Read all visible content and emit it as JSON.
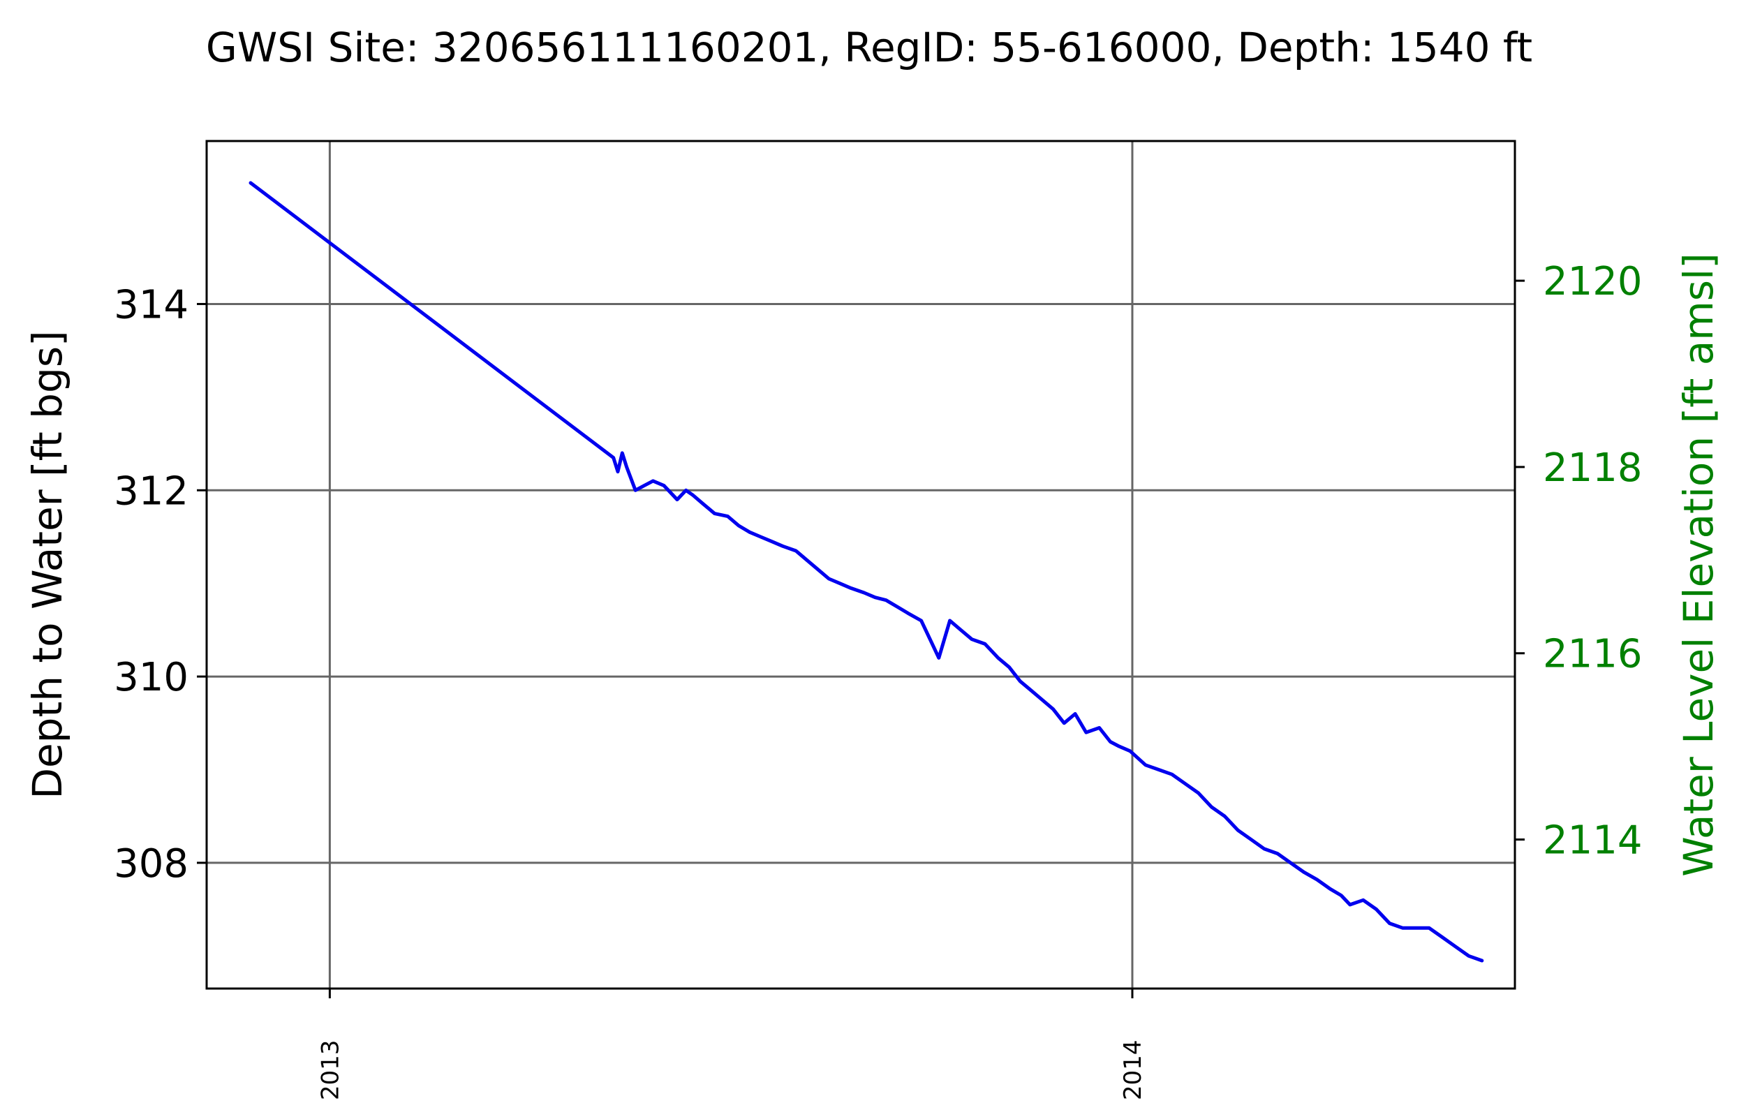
{
  "chart_data": {
    "type": "line",
    "title": "GWSI Site: 320656111160201, RegID: 55-616000, Depth: 1540 ft",
    "xlabel": "",
    "ylabel": "Depth to Water [ft bgs]",
    "ylabel_right": "Water Level Elevation [ft amsl]",
    "xlim": [
      "2012-11-06",
      "2014-06-24"
    ],
    "ylim": [
      315.75,
      306.65
    ],
    "ylim_right": [
      2112.4,
      2121.5
    ],
    "y_inverted": true,
    "x_ticks": [
      "2013",
      "2014"
    ],
    "y_ticks": [
      308,
      310,
      312,
      314
    ],
    "y_ticks_right": [
      2120,
      2118,
      2116,
      2114
    ],
    "grid": true,
    "legend": "none",
    "colors": {
      "series": "#0000ee",
      "right_axis": "#008000",
      "grid": "#666666",
      "axes": "#000000"
    },
    "series": [
      {
        "x": [
          "2012-11-26",
          "2013-05-10",
          "2013-05-12",
          "2013-05-14",
          "2013-05-16",
          "2013-05-20",
          "2013-05-24",
          "2013-05-28",
          "2013-06-02",
          "2013-06-08",
          "2013-06-12",
          "2013-06-15",
          "2013-06-20",
          "2013-06-25",
          "2013-07-01",
          "2013-07-06",
          "2013-07-11",
          "2013-07-16",
          "2013-07-21",
          "2013-07-26",
          "2013-08-01",
          "2013-08-06",
          "2013-08-11",
          "2013-08-16",
          "2013-08-21",
          "2013-08-26",
          "2013-09-01",
          "2013-09-06",
          "2013-09-11",
          "2013-09-16",
          "2013-09-21",
          "2013-09-27",
          "2013-10-02",
          "2013-10-05",
          "2013-10-10",
          "2013-10-15",
          "2013-10-20",
          "2013-10-26",
          "2013-11-01",
          "2013-11-06",
          "2013-11-11",
          "2013-11-16",
          "2013-11-21",
          "2013-11-26",
          "2013-12-01",
          "2013-12-06",
          "2013-12-11",
          "2013-12-17",
          "2013-12-22",
          "2013-12-26",
          "2013-12-31",
          "2014-01-07",
          "2014-01-13",
          "2014-01-19",
          "2014-01-25",
          "2014-01-31",
          "2014-02-06",
          "2014-02-12",
          "2014-02-18",
          "2014-02-24",
          "2014-03-02",
          "2014-03-08",
          "2014-03-14",
          "2014-03-20",
          "2014-03-26",
          "2014-04-01",
          "2014-04-06",
          "2014-04-10",
          "2014-04-16",
          "2014-04-22",
          "2014-04-28",
          "2014-05-04",
          "2014-05-10",
          "2014-05-16",
          "2014-05-22",
          "2014-05-28",
          "2014-06-03",
          "2014-06-09"
        ],
        "y": [
          315.3,
          312.35,
          312.2,
          312.4,
          312.25,
          312.0,
          312.05,
          312.1,
          312.05,
          311.9,
          312.0,
          311.95,
          311.85,
          311.75,
          311.72,
          311.62,
          311.55,
          311.5,
          311.45,
          311.4,
          311.35,
          311.25,
          311.15,
          311.05,
          311.0,
          310.95,
          310.9,
          310.85,
          310.82,
          310.75,
          310.68,
          310.6,
          310.35,
          310.2,
          310.6,
          310.5,
          310.4,
          310.35,
          310.2,
          310.1,
          309.95,
          309.85,
          309.75,
          309.65,
          309.5,
          309.6,
          309.4,
          309.45,
          309.3,
          309.25,
          309.2,
          309.05,
          309.0,
          308.95,
          308.85,
          308.75,
          308.6,
          308.5,
          308.35,
          308.25,
          308.15,
          308.1,
          308.0,
          307.9,
          307.82,
          307.72,
          307.65,
          307.55,
          307.6,
          307.5,
          307.35,
          307.3,
          307.3,
          307.3,
          307.2,
          307.1,
          307.0,
          306.95
        ]
      }
    ]
  }
}
